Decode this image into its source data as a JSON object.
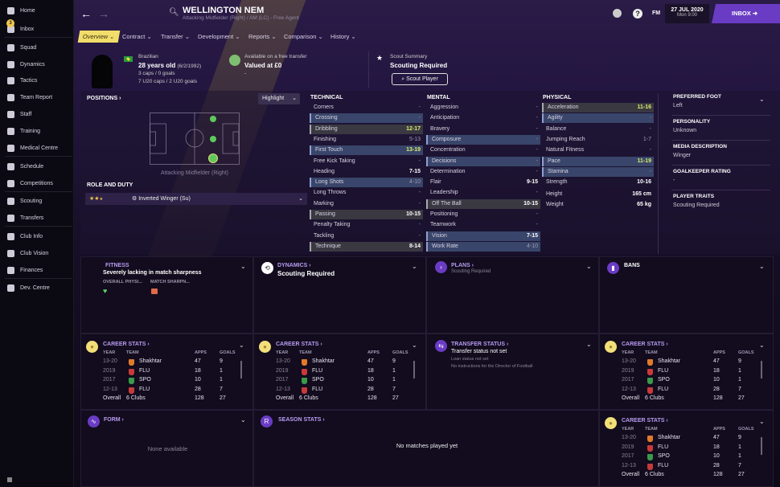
{
  "sidebar": {
    "items": [
      {
        "label": "Home",
        "icon": "home-icon"
      },
      {
        "label": "Inbox",
        "icon": "inbox-icon",
        "badge": "3"
      },
      {
        "label": "Squad",
        "icon": "shirt-icon"
      },
      {
        "label": "Dynamics",
        "icon": "dynamics-icon"
      },
      {
        "label": "Tactics",
        "icon": "tactics-icon"
      },
      {
        "label": "Team Report",
        "icon": "clipboard-icon"
      },
      {
        "label": "Staff",
        "icon": "staff-icon"
      },
      {
        "label": "Training",
        "icon": "training-icon"
      },
      {
        "label": "Medical Centre",
        "icon": "medical-icon"
      },
      {
        "label": "Schedule",
        "icon": "calendar-icon"
      },
      {
        "label": "Competitions",
        "icon": "trophy-icon"
      },
      {
        "label": "Scouting",
        "icon": "search-icon"
      },
      {
        "label": "Transfers",
        "icon": "transfer-icon"
      },
      {
        "label": "Club Info",
        "icon": "shield-icon"
      },
      {
        "label": "Club Vision",
        "icon": "briefcase-icon"
      },
      {
        "label": "Finances",
        "icon": "money-icon"
      },
      {
        "label": "Dev. Centre",
        "icon": "dev-icon"
      }
    ]
  },
  "header": {
    "name": "WELLINGTON NEM",
    "subtitle": "Attacking Midfielder (Right) / AM (LC) - Free Agent",
    "fm": "FM",
    "date": "27 JUL 2020",
    "time": "Mon 9:00",
    "inbox": "INBOX",
    "accent": "#6a3cc4"
  },
  "tabs": [
    "Overview",
    "Contract",
    "Transfer",
    "Development",
    "Reports",
    "Comparison",
    "History"
  ],
  "profile": {
    "nationality": "Brazilian",
    "age": "28 years old",
    "dob": "(6/2/1992)",
    "caps": "3 caps / 0 goals",
    "u20caps": "7 U20 caps / 2 U20 goals",
    "transfer_label": "Available on a free transfer",
    "value": "Valued at £0",
    "value_sub": "-",
    "scout_label": "Scout Summary",
    "scout_value": "Scouting Required",
    "scout_button": "Scout Player"
  },
  "positions": {
    "title": "POSITIONS",
    "highlight": "Highlight",
    "position": "Attacking Midfielder (Right)",
    "role_title": "ROLE AND DUTY",
    "role": "Inverted Winger (Su)",
    "role_stars": 2.5
  },
  "attributes": {
    "technical_title": "TECHNICAL",
    "mental_title": "MENTAL",
    "physical_title": "PHYSICAL",
    "technical": [
      [
        "Corners",
        "-",
        "",
        ""
      ],
      [
        "Crossing",
        "-",
        "blue",
        "dim"
      ],
      [
        "Dribbling",
        "12-17",
        "gray",
        "yellow"
      ],
      [
        "Finishing",
        "5-13",
        "",
        "dim"
      ],
      [
        "First Touch",
        "13-19",
        "blue",
        "yellow"
      ],
      [
        "Free Kick Taking",
        "-",
        "",
        ""
      ],
      [
        "Heading",
        "7-15",
        "",
        "white"
      ],
      [
        "Long Shots",
        "4-10",
        "blue",
        "dim"
      ],
      [
        "Long Throws",
        "-",
        "",
        ""
      ],
      [
        "Marking",
        "-",
        "",
        ""
      ],
      [
        "Passing",
        "10-15",
        "gray",
        "white"
      ],
      [
        "Penalty Taking",
        "-",
        "",
        ""
      ],
      [
        "Tackling",
        "-",
        "",
        ""
      ],
      [
        "Technique",
        "8-14",
        "gray",
        "white"
      ]
    ],
    "mental": [
      [
        "Aggression",
        "-",
        "",
        ""
      ],
      [
        "Anticipation",
        "-",
        "",
        ""
      ],
      [
        "Bravery",
        "-",
        "",
        ""
      ],
      [
        "Composure",
        "-",
        "blue",
        "dim"
      ],
      [
        "Concentration",
        "-",
        "",
        ""
      ],
      [
        "Decisions",
        "-",
        "blue",
        "dim"
      ],
      [
        "Determination",
        "-",
        "",
        ""
      ],
      [
        "Flair",
        "9-15",
        "",
        "white"
      ],
      [
        "Leadership",
        "-",
        "",
        ""
      ],
      [
        "Off The Ball",
        "10-15",
        "gray",
        "white"
      ],
      [
        "Positioning",
        "-",
        "",
        ""
      ],
      [
        "Teamwork",
        "-",
        "",
        ""
      ],
      [
        "Vision",
        "7-15",
        "blue",
        "white"
      ],
      [
        "Work Rate",
        "4-10",
        "blue",
        "dim"
      ]
    ],
    "physical": [
      [
        "Acceleration",
        "11-16",
        "gray",
        "yellow"
      ],
      [
        "Agility",
        "-",
        "blue",
        "dim"
      ],
      [
        "Balance",
        "-",
        "",
        ""
      ],
      [
        "Jumping Reach",
        "1-7",
        "",
        "dim"
      ],
      [
        "Natural Fitness",
        "-",
        "",
        ""
      ],
      [
        "Pace",
        "11-19",
        "blue",
        "yellow"
      ],
      [
        "Stamina",
        "-",
        "blue",
        "dim"
      ],
      [
        "Strength",
        "10-16",
        "",
        "white"
      ]
    ],
    "height_label": "Height",
    "height": "165 cm",
    "weight_label": "Weight",
    "weight": "65 kg"
  },
  "info": [
    {
      "label": "PREFERRED FOOT",
      "value": "Left"
    },
    {
      "label": "PERSONALITY",
      "value": "Unknown"
    },
    {
      "label": "MEDIA DESCRIPTION",
      "value": "Winger"
    },
    {
      "label": "GOALKEEPER RATING",
      "value": "-"
    },
    {
      "label": "PLAYER TRAITS",
      "value": "Scouting Required"
    }
  ],
  "fitness": {
    "title": "FITNESS",
    "text": "Severely lacking in match sharpness",
    "col1": "OVERALL PHYSI...",
    "col2": "MATCH SHARPN..."
  },
  "dynamics": {
    "title": "DYNAMICS",
    "text": "Scouting Required"
  },
  "plans": {
    "title": "PLANS",
    "text": "Scouting Required"
  },
  "bans": {
    "title": "BANS"
  },
  "transfer_status": {
    "title": "TRANSFER STATUS",
    "text": "Transfer status not set",
    "loan": "Loan status not set",
    "dof": "No instructions for the Director of Football"
  },
  "form": {
    "title": "FORM",
    "text": "None available"
  },
  "season_stats": {
    "title": "SEASON STATS",
    "text": "No matches played yet"
  },
  "career": {
    "title": "CAREER STATS",
    "headers": [
      "YEAR",
      "TEAM",
      "APPS",
      "GOALS"
    ],
    "rows": [
      {
        "year": "13-20",
        "team": "Shakhtar",
        "apps": "47",
        "goals": "9",
        "crest": "#e07a2a"
      },
      {
        "year": "2019",
        "team": "FLU",
        "apps": "18",
        "goals": "1",
        "crest": "#c83a3a"
      },
      {
        "year": "2017",
        "team": "SPO",
        "apps": "10",
        "goals": "1",
        "crest": "#3a9a4a"
      },
      {
        "year": "12-13",
        "team": "FLU",
        "apps": "28",
        "goals": "7",
        "crest": "#c83a3a"
      }
    ],
    "total": {
      "label": "Overall",
      "clubs": "6 Clubs",
      "apps": "128",
      "goals": "27"
    }
  }
}
